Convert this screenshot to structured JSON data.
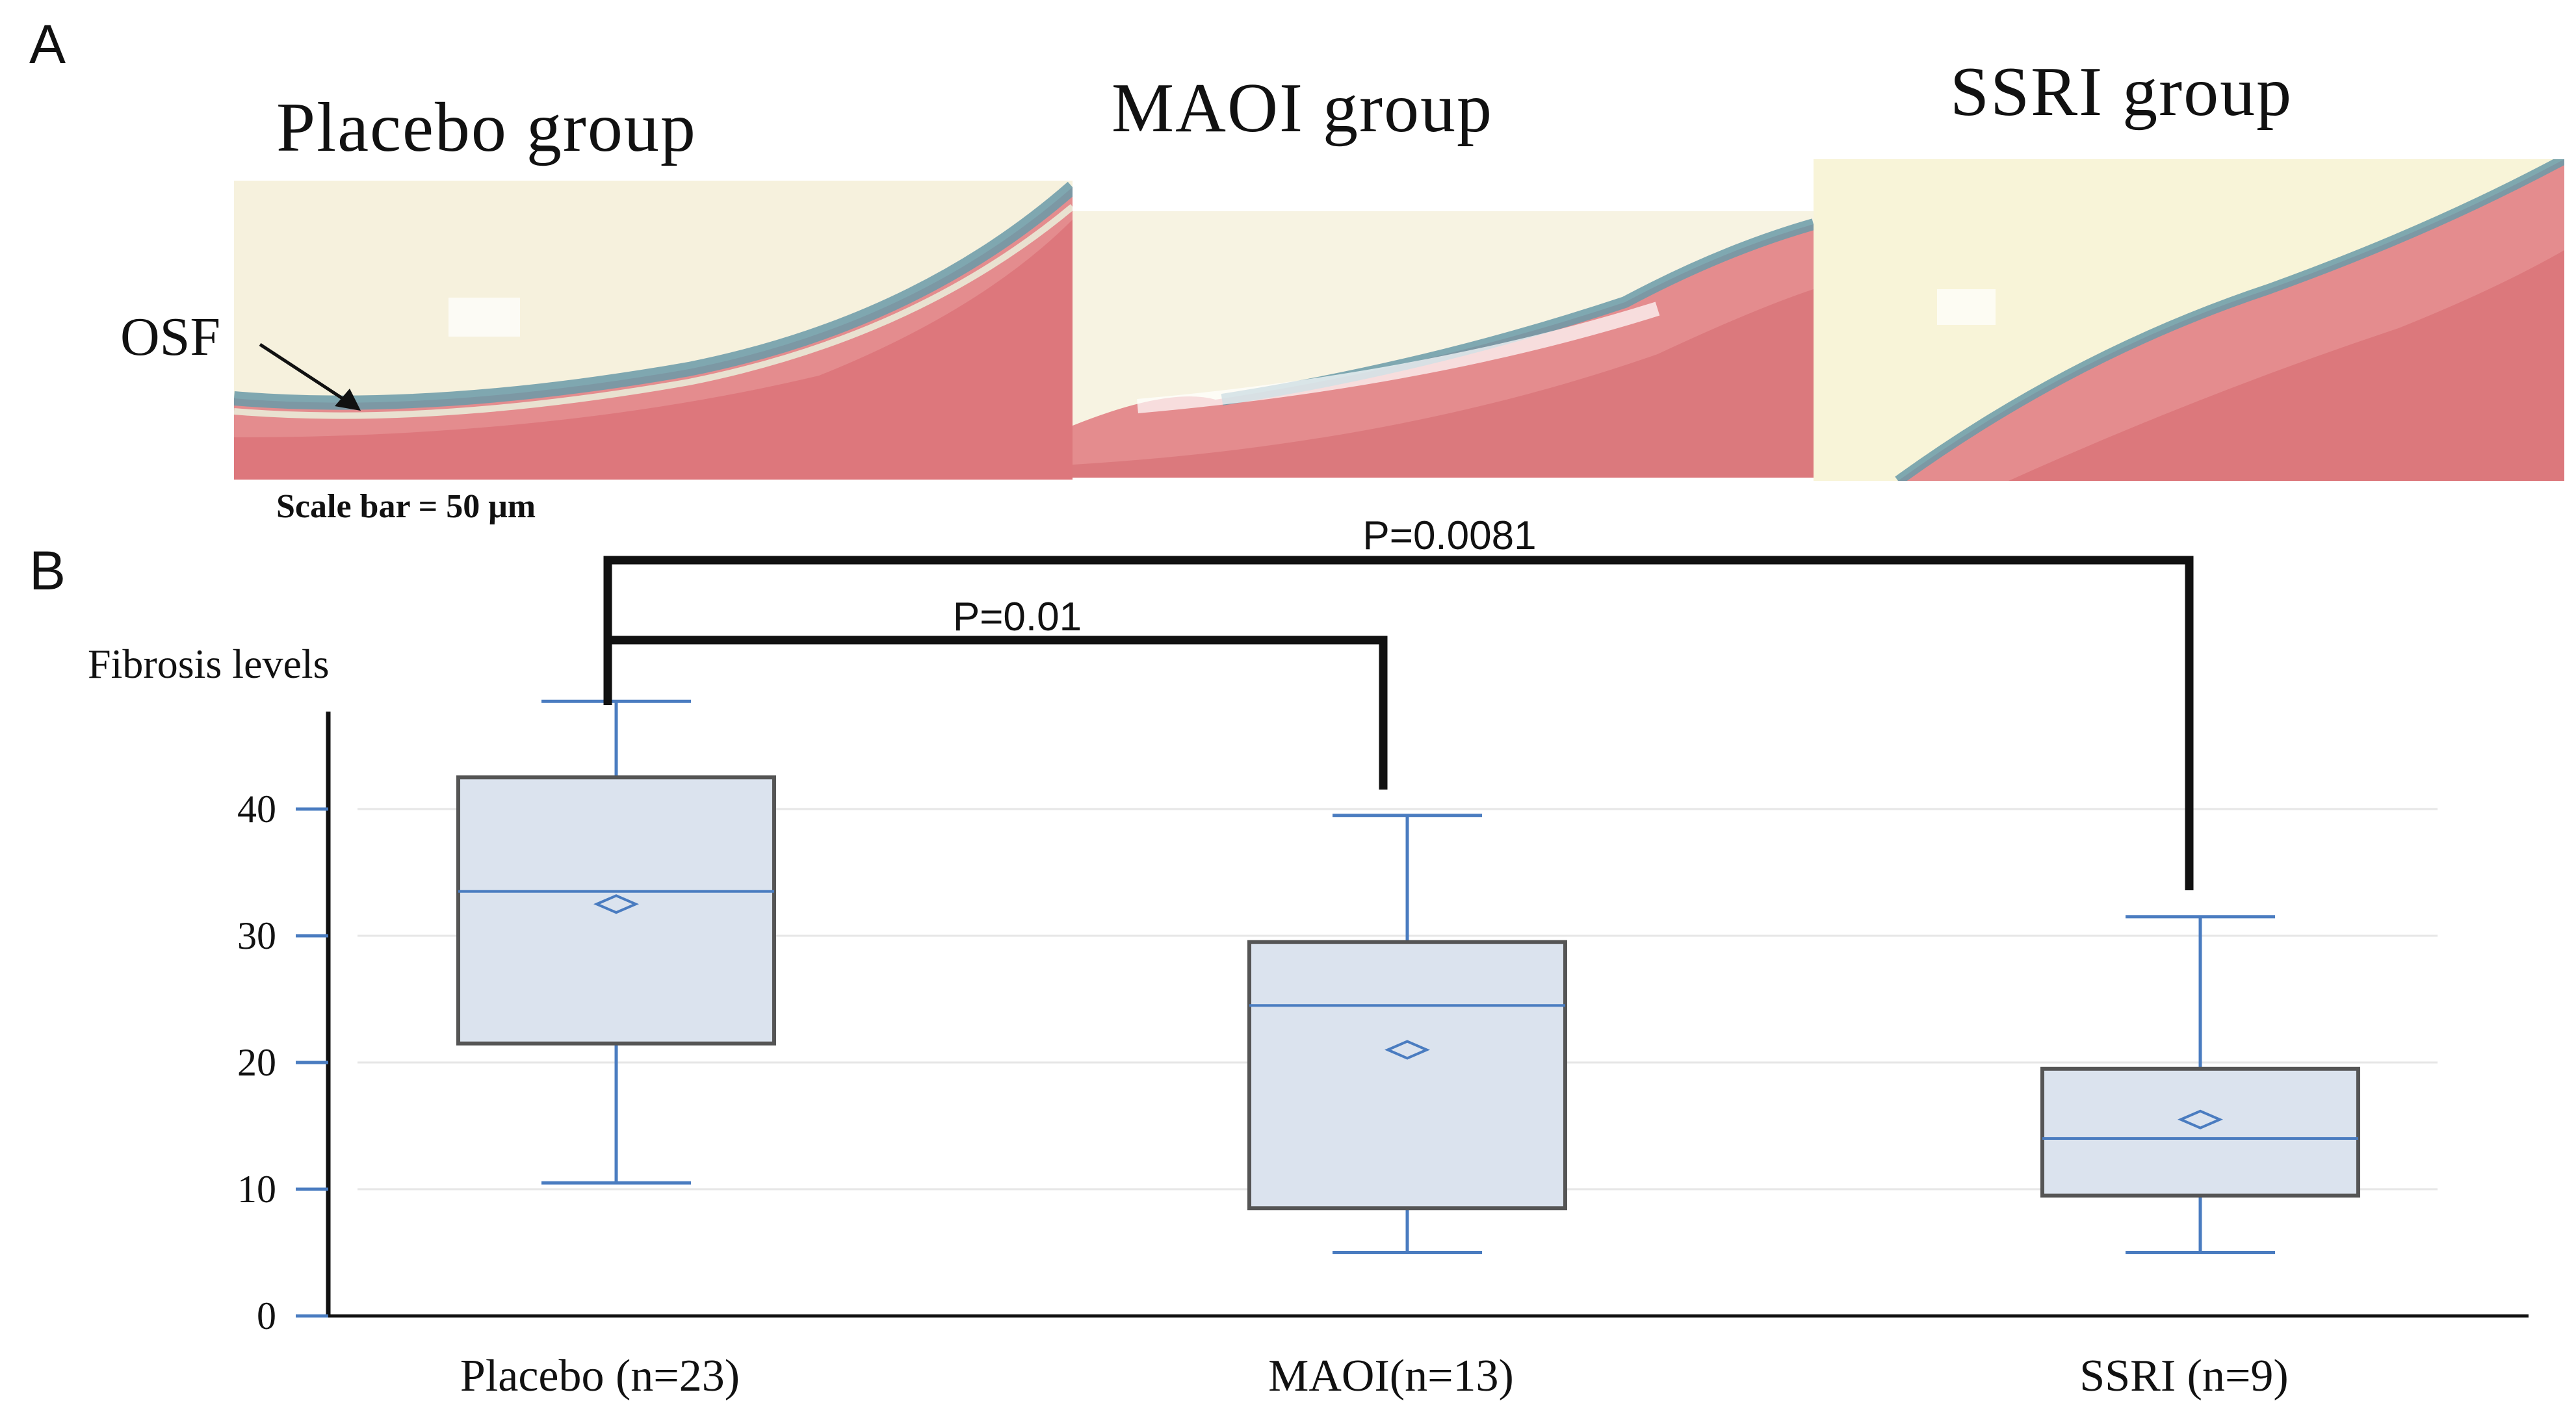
{
  "panel_a": {
    "letter": "A",
    "titles": [
      "Placebo group",
      "MAOI group",
      "SSRI group"
    ],
    "osf_label": "OSF",
    "scale_bar": "Scale bar = 50 μm"
  },
  "panel_b": {
    "letter": "B"
  },
  "chart_data": {
    "type": "box",
    "ylabel": "Fibrosis levels",
    "ylim": [
      0,
      46
    ],
    "yticks": [
      0,
      10,
      20,
      30,
      40
    ],
    "grid": true,
    "categories": [
      "Placebo (n=23)",
      "MAOI(n=13)",
      "SSRI (n=9)"
    ],
    "boxes": [
      {
        "category": "Placebo (n=23)",
        "whisker_low": 10.5,
        "q1": 21.5,
        "median": 33.5,
        "q3": 42.5,
        "whisker_high": 48.5,
        "mean": 32.5
      },
      {
        "category": "MAOI(n=13)",
        "whisker_low": 5,
        "q1": 8.5,
        "median": 24.5,
        "q3": 29.5,
        "whisker_high": 39.5,
        "mean": 21
      },
      {
        "category": "SSRI (n=9)",
        "whisker_low": 5,
        "q1": 9.5,
        "median": 14,
        "q3": 19.5,
        "whisker_high": 31.5,
        "mean": 15.5
      }
    ],
    "comparisons": [
      {
        "from": "Placebo (n=23)",
        "to": "MAOI(n=13)",
        "label": "P=0.01"
      },
      {
        "from": "Placebo (n=23)",
        "to": "SSRI (n=9)",
        "label": "P=0.0081"
      }
    ],
    "colors": {
      "box_fill": "#dbe3ee",
      "box_edge": "#555555",
      "whisker": "#4a7cc0",
      "median": "#4a7cc0",
      "mean_marker": "#4a7cc0",
      "grid": "#e6e6e6",
      "axis": "#111111"
    }
  }
}
